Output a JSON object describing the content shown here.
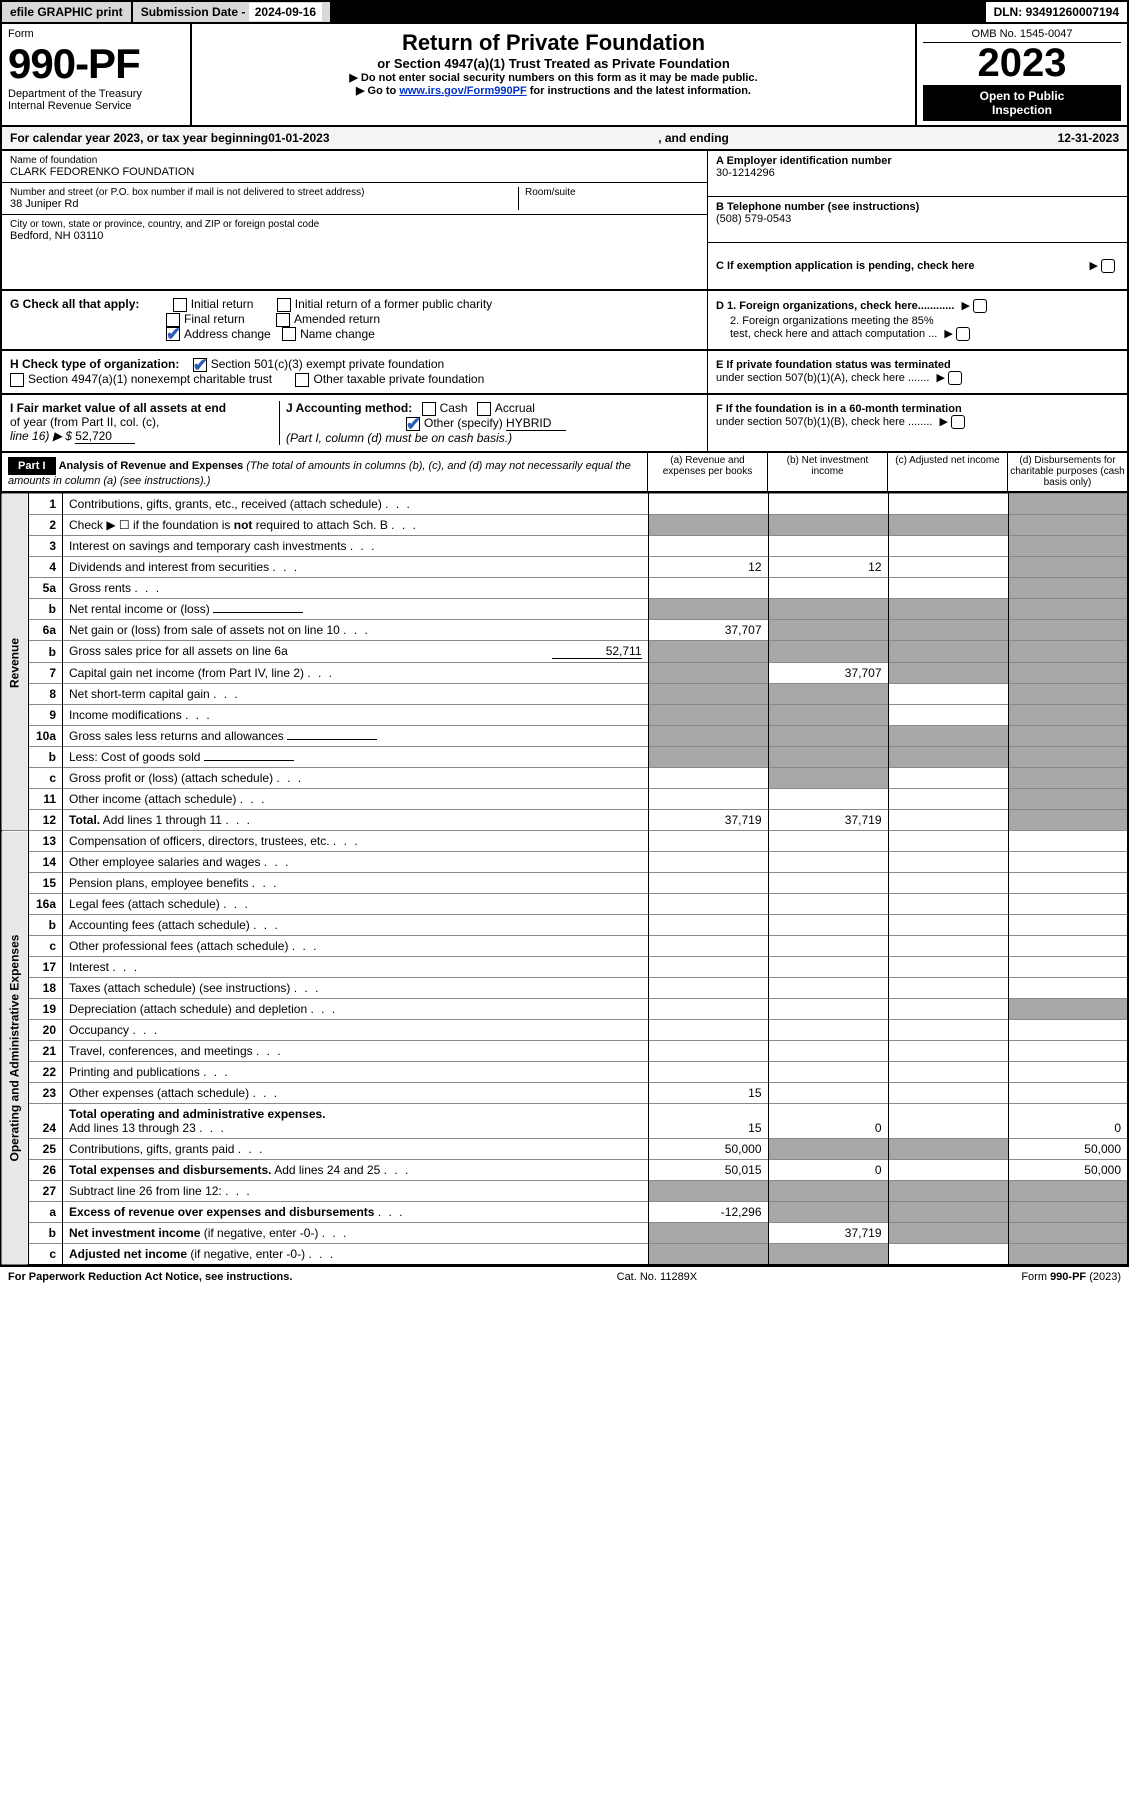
{
  "topbar": {
    "efile": "efile GRAPHIC print",
    "subdate_label": "Submission Date - ",
    "subdate_value": "2024-09-16",
    "dln_label": "DLN: ",
    "dln_value": "93491260007194"
  },
  "header": {
    "form_word": "Form",
    "form_num": "990-PF",
    "dept1": "Department of the Treasury",
    "dept2": "Internal Revenue Service",
    "title": "Return of Private Foundation",
    "subtitle": "or Section 4947(a)(1) Trust Treated as Private Foundation",
    "instr1": "▶ Do not enter social security numbers on this form as it may be made public.",
    "instr2_pre": "▶ Go to ",
    "instr2_link": "www.irs.gov/Form990PF",
    "instr2_post": " for instructions and the latest information.",
    "omb": "OMB No. 1545-0047",
    "year": "2023",
    "inspect1": "Open to Public",
    "inspect2": "Inspection"
  },
  "calyear": {
    "pre": "For calendar year 2023, or tax year beginning ",
    "begin": "01-01-2023",
    "mid": " , and ending ",
    "end": "12-31-2023"
  },
  "info": {
    "name_label": "Name of foundation",
    "name": "CLARK FEDORENKO FOUNDATION",
    "street_label": "Number and street (or P.O. box number if mail is not delivered to street address)",
    "street": "38 Juniper Rd",
    "room_label": "Room/suite",
    "room": "",
    "city_label": "City or town, state or province, country, and ZIP or foreign postal code",
    "city": "Bedford, NH  03110",
    "a_label": "A Employer identification number",
    "a_val": "30-1214296",
    "b_label": "B Telephone number (see instructions)",
    "b_val": "(508) 579-0543",
    "c_label": "C If exemption application is pending, check here",
    "d1": "D 1. Foreign organizations, check here............",
    "d2a": "2. Foreign organizations meeting the 85%",
    "d2b": "test, check here and attach computation ...",
    "e1": "E  If private foundation status was terminated",
    "e2": "under section 507(b)(1)(A), check here .......",
    "f1": "F  If the foundation is in a 60-month termination",
    "f2": "under section 507(b)(1)(B), check here ........"
  },
  "g": {
    "label": "G Check all that apply:",
    "initial": "Initial return",
    "initial_former": "Initial return of a former public charity",
    "final": "Final return",
    "amended": "Amended return",
    "address": "Address change",
    "name": "Name change"
  },
  "h": {
    "label": "H Check type of organization:",
    "s501": "Section 501(c)(3) exempt private foundation",
    "s4947": "Section 4947(a)(1) nonexempt charitable trust",
    "other_tax": "Other taxable private foundation"
  },
  "i": {
    "text1": "I Fair market value of all assets at end",
    "text2": "of year (from Part II, col. (c),",
    "text3": "line 16) ▶ $",
    "val": "52,720"
  },
  "j": {
    "label": "J Accounting method:",
    "cash": "Cash",
    "accrual": "Accrual",
    "other_pre": "Other (specify)",
    "other_val": "HYBRID",
    "note": "(Part I, column (d) must be on cash basis.)"
  },
  "part1": {
    "label": "Part I",
    "title": "Analysis of Revenue and Expenses",
    "note": "(The total of amounts in columns (b), (c), and (d) may not necessarily equal the amounts in column (a) (see instructions).)",
    "col_a": "(a)  Revenue and expenses per books",
    "col_b": "(b)  Net investment income",
    "col_c": "(c)  Adjusted net income",
    "col_d": "(d)  Disbursements for charitable purposes (cash basis only)"
  },
  "side_labels": {
    "revenue": "Revenue",
    "expenses": "Operating and Administrative Expenses"
  },
  "lines": [
    {
      "n": "1",
      "d": "Contributions, gifts, grants, etc., received (attach schedule)",
      "a": "",
      "b": "",
      "c": "",
      "dd": "",
      "greyd": true
    },
    {
      "n": "2",
      "d": "Check ▶ ☐ if the foundation is <b>not</b> required to attach Sch. B",
      "a": "",
      "b": "",
      "c": "",
      "dd": "",
      "allgrey": true
    },
    {
      "n": "3",
      "d": "Interest on savings and temporary cash investments",
      "a": "",
      "b": "",
      "c": "",
      "dd": "",
      "greyd": true
    },
    {
      "n": "4",
      "d": "Dividends and interest from securities",
      "a": "12",
      "b": "12",
      "c": "",
      "dd": "",
      "greyd": true
    },
    {
      "n": "5a",
      "d": "Gross rents",
      "a": "",
      "b": "",
      "c": "",
      "dd": "",
      "greyd": true
    },
    {
      "n": "b",
      "d": "Net rental income or (loss)",
      "a": "",
      "b": "",
      "c": "",
      "dd": "",
      "allgrey": true,
      "inset": true
    },
    {
      "n": "6a",
      "d": "Net gain or (loss) from sale of assets not on line 10",
      "a": "37,707",
      "b": "",
      "c": "",
      "dd": "",
      "greybcd": true
    },
    {
      "n": "b",
      "d": "Gross sales price for all assets on line 6a",
      "a": "",
      "b": "",
      "c": "",
      "dd": "",
      "allgrey": true,
      "inset": true,
      "inset_val": "52,711"
    },
    {
      "n": "7",
      "d": "Capital gain net income (from Part IV, line 2)",
      "a": "",
      "b": "37,707",
      "c": "",
      "dd": "",
      "greya": true,
      "greycd": true
    },
    {
      "n": "8",
      "d": "Net short-term capital gain",
      "a": "",
      "b": "",
      "c": "",
      "dd": "",
      "greyabd": true
    },
    {
      "n": "9",
      "d": "Income modifications",
      "a": "",
      "b": "",
      "c": "",
      "dd": "",
      "greyabd": true
    },
    {
      "n": "10a",
      "d": "Gross sales less returns and allowances",
      "a": "",
      "b": "",
      "c": "",
      "dd": "",
      "allgrey": true,
      "inset": true
    },
    {
      "n": "b",
      "d": "Less: Cost of goods sold",
      "a": "",
      "b": "",
      "c": "",
      "dd": "",
      "allgrey": true,
      "inset": true
    },
    {
      "n": "c",
      "d": "Gross profit or (loss) (attach schedule)",
      "a": "",
      "b": "",
      "c": "",
      "dd": "",
      "greybd": true
    },
    {
      "n": "11",
      "d": "Other income (attach schedule)",
      "a": "",
      "b": "",
      "c": "",
      "dd": "",
      "greyd": true
    },
    {
      "n": "12",
      "d": "<b>Total.</b> Add lines 1 through 11",
      "a": "37,719",
      "b": "37,719",
      "c": "",
      "dd": "",
      "greyd": true
    },
    {
      "n": "13",
      "d": "Compensation of officers, directors, trustees, etc.",
      "a": "",
      "b": "",
      "c": "",
      "dd": ""
    },
    {
      "n": "14",
      "d": "Other employee salaries and wages",
      "a": "",
      "b": "",
      "c": "",
      "dd": ""
    },
    {
      "n": "15",
      "d": "Pension plans, employee benefits",
      "a": "",
      "b": "",
      "c": "",
      "dd": ""
    },
    {
      "n": "16a",
      "d": "Legal fees (attach schedule)",
      "a": "",
      "b": "",
      "c": "",
      "dd": ""
    },
    {
      "n": "b",
      "d": "Accounting fees (attach schedule)",
      "a": "",
      "b": "",
      "c": "",
      "dd": ""
    },
    {
      "n": "c",
      "d": "Other professional fees (attach schedule)",
      "a": "",
      "b": "",
      "c": "",
      "dd": ""
    },
    {
      "n": "17",
      "d": "Interest",
      "a": "",
      "b": "",
      "c": "",
      "dd": ""
    },
    {
      "n": "18",
      "d": "Taxes (attach schedule) (see instructions)",
      "a": "",
      "b": "",
      "c": "",
      "dd": ""
    },
    {
      "n": "19",
      "d": "Depreciation (attach schedule) and depletion",
      "a": "",
      "b": "",
      "c": "",
      "dd": "",
      "greyd": true
    },
    {
      "n": "20",
      "d": "Occupancy",
      "a": "",
      "b": "",
      "c": "",
      "dd": ""
    },
    {
      "n": "21",
      "d": "Travel, conferences, and meetings",
      "a": "",
      "b": "",
      "c": "",
      "dd": ""
    },
    {
      "n": "22",
      "d": "Printing and publications",
      "a": "",
      "b": "",
      "c": "",
      "dd": ""
    },
    {
      "n": "23",
      "d": "Other expenses (attach schedule)",
      "a": "15",
      "b": "",
      "c": "",
      "dd": ""
    },
    {
      "n": "24",
      "d": "<b>Total operating and administrative expenses.</b><br>Add lines 13 through 23",
      "a": "15",
      "b": "0",
      "c": "",
      "dd": "0"
    },
    {
      "n": "25",
      "d": "Contributions, gifts, grants paid",
      "a": "50,000",
      "b": "",
      "c": "",
      "dd": "50,000",
      "greybc": true
    },
    {
      "n": "26",
      "d": "<b>Total expenses and disbursements.</b> Add lines 24 and 25",
      "a": "50,015",
      "b": "0",
      "c": "",
      "dd": "50,000"
    },
    {
      "n": "27",
      "d": "Subtract line 26 from line 12:",
      "a": "",
      "b": "",
      "c": "",
      "dd": "",
      "allgrey": true
    },
    {
      "n": "a",
      "d": "<b>Excess of revenue over expenses and disbursements</b>",
      "a": "-12,296",
      "b": "",
      "c": "",
      "dd": "",
      "greybcd": true
    },
    {
      "n": "b",
      "d": "<b>Net investment income</b> (if negative, enter -0-)",
      "a": "",
      "b": "37,719",
      "c": "",
      "dd": "",
      "greya": true,
      "greycd": true
    },
    {
      "n": "c",
      "d": "<b>Adjusted net income</b> (if negative, enter -0-)",
      "a": "",
      "b": "",
      "c": "",
      "dd": "",
      "greyabd": true
    }
  ],
  "footer": {
    "left": "For Paperwork Reduction Act Notice, see instructions.",
    "mid": "Cat. No. 11289X",
    "right": "Form 990-PF (2023)"
  },
  "colors": {
    "black": "#000000",
    "grey_cell": "#a8a8a8",
    "greybg": "#d8d8d8",
    "link": "#0033cc",
    "check": "#2d5fb3"
  }
}
